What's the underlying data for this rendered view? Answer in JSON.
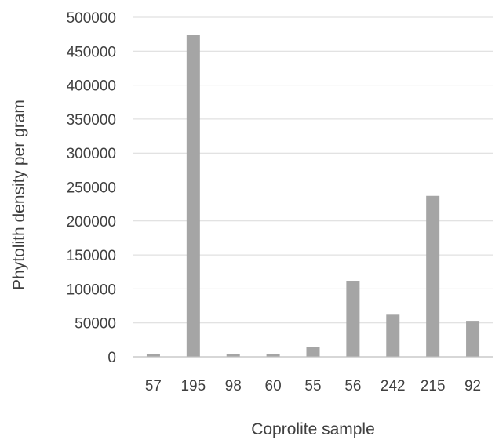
{
  "chart_data": {
    "type": "bar",
    "title": "",
    "xlabel": "Coprolite sample",
    "ylabel": "Phytolith density per gram",
    "categories": [
      "57",
      "195",
      "98",
      "60",
      "55",
      "56",
      "242",
      "215",
      "92"
    ],
    "values": [
      4000,
      474000,
      3500,
      3500,
      14000,
      112000,
      62000,
      237000,
      53000
    ],
    "ylim": [
      0,
      500000
    ],
    "yticks": [
      0,
      50000,
      100000,
      150000,
      200000,
      250000,
      300000,
      350000,
      400000,
      450000,
      500000
    ],
    "grid": true,
    "legend": "none",
    "bar_color": "#a5a5a5",
    "grid_color": "#d9d9d9",
    "text_color": "#404040"
  }
}
